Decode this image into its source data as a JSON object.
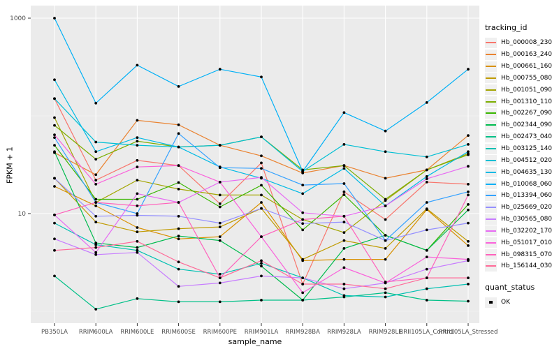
{
  "chart_data": {
    "type": "line",
    "title": "",
    "xlabel": "sample_name",
    "ylabel": "FPKM + 1",
    "legend_title": "tracking_id",
    "legend_position": "right",
    "y_scale": "log10",
    "grid": true,
    "panel_bg": "#EBEBEB",
    "grid_color": "#FFFFFF",
    "point_color": "#000000",
    "y_ticks": [
      {
        "value": 10,
        "label": "10"
      },
      {
        "value": 1000,
        "label": "1000"
      }
    ],
    "y_minor_gridlines": [
      1,
      100
    ],
    "ylim": [
      0.75,
      1100
    ],
    "categories": [
      "PB350LA",
      "RRIM600LA",
      "RRIM600LE",
      "RRIM600SE",
      "RRIM600PE",
      "RRIM901LA",
      "RRIM928BA",
      "RRIM928LA",
      "RRIM928LE",
      "RRII105LA_Control",
      "RRII105LA_Stressed"
    ],
    "series": [
      {
        "name": "Hb_000008_230",
        "color": "#F8766D",
        "values": [
          150,
          22,
          35,
          31,
          12.6,
          33,
          1.9,
          16.7,
          8.7,
          21,
          20
        ]
      },
      {
        "name": "Hb_000163_240",
        "color": "#EA8331",
        "values": [
          42,
          25,
          90,
          81,
          50,
          39,
          26,
          31,
          23,
          28,
          63
        ]
      },
      {
        "name": "Hb_000661_160",
        "color": "#D89000",
        "values": [
          19,
          12,
          7.2,
          5.5,
          5.8,
          13,
          3.3,
          3.4,
          3.4,
          11,
          4.7
        ]
      },
      {
        "name": "Hb_000755_080",
        "color": "#C09B00",
        "values": [
          23,
          8.2,
          6.5,
          7,
          7.3,
          11.3,
          3.4,
          5.3,
          4.4,
          11.2,
          5.2
        ]
      },
      {
        "name": "Hb_001051_090",
        "color": "#A3A500",
        "values": [
          96,
          13,
          22,
          17.8,
          15.5,
          15.5,
          8.7,
          6.4,
          13.6,
          28,
          41
        ]
      },
      {
        "name": "Hb_001310_110",
        "color": "#7CAE00",
        "values": [
          80,
          36,
          55,
          48,
          50,
          61,
          28,
          31,
          14,
          28,
          40
        ]
      },
      {
        "name": "Hb_002267_090",
        "color": "#39B600",
        "values": [
          50,
          14,
          14,
          20.8,
          11.7,
          19.5,
          6.8,
          15.6,
          6,
          4.2,
          12.4
        ]
      },
      {
        "name": "Hb_002344_090",
        "color": "#00BB4E",
        "values": [
          43,
          5,
          4.5,
          5.9,
          5.3,
          2.9,
          1.3,
          4.4,
          6,
          4.2,
          10.9
        ]
      },
      {
        "name": "Hb_002473_040",
        "color": "#00C087",
        "values": [
          2.3,
          1.05,
          1.35,
          1.25,
          1.25,
          1.3,
          1.3,
          1.4,
          1.55,
          1.3,
          1.27
        ]
      },
      {
        "name": "Hb_003125_140",
        "color": "#00C0B2",
        "values": [
          8,
          4.8,
          4.2,
          2.7,
          2.4,
          3.1,
          2.2,
          1.45,
          1.4,
          1.7,
          1.9
        ]
      },
      {
        "name": "Hb_004512_020",
        "color": "#00BFD4",
        "values": [
          150,
          54,
          50,
          48,
          50,
          61,
          27,
          51,
          43,
          38,
          51
        ]
      },
      {
        "name": "Hb_004635_130",
        "color": "#00BAE5",
        "values": [
          234,
          43,
          60,
          48,
          30,
          23,
          16,
          29,
          12,
          24,
          43
        ]
      },
      {
        "name": "Hb_010068_060",
        "color": "#00B0F6",
        "values": [
          1000,
          135,
          330,
          200,
          300,
          250,
          27,
          108,
          70,
          137,
          300
        ]
      },
      {
        "name": "Hb_013394_060",
        "color": "#35A2FF",
        "values": [
          60,
          13,
          10,
          66,
          29.5,
          29,
          19.6,
          20.3,
          5.3,
          13,
          16.7
        ]
      },
      {
        "name": "Hb_025669_020",
        "color": "#9590FF",
        "values": [
          23,
          9.4,
          9.6,
          9.4,
          8,
          11.3,
          7.9,
          8.2,
          5.3,
          6.8,
          8
        ]
      },
      {
        "name": "Hb_030565_080",
        "color": "#C77CFF",
        "values": [
          5.5,
          3.8,
          4,
          1.8,
          1.95,
          2.3,
          2.2,
          1.7,
          1.95,
          2.7,
          3.3
        ]
      },
      {
        "name": "Hb_032202_170",
        "color": "#E76BF3",
        "values": [
          9.7,
          4,
          16,
          13,
          21,
          23.5,
          10.2,
          9.4,
          12,
          22.7,
          30.5
        ]
      },
      {
        "name": "Hb_051017_010",
        "color": "#FA62DB",
        "values": [
          64,
          20,
          30,
          31,
          21,
          5.8,
          1.55,
          2.8,
          1.95,
          3.6,
          3.4
        ]
      },
      {
        "name": "Hb_098315_070",
        "color": "#FF62BC",
        "values": [
          9.7,
          13,
          12,
          13,
          2.2,
          5.8,
          8.7,
          9.4,
          2,
          2.2,
          15.5
        ]
      },
      {
        "name": "Hb_156144_030",
        "color": "#FF6A98",
        "values": [
          4.2,
          4.5,
          5.2,
          3.2,
          2.2,
          3.3,
          1.9,
          1.9,
          1.7,
          2.2,
          2.2
        ]
      }
    ],
    "quant_status": {
      "title": "quant_status",
      "items": [
        {
          "label": "OK",
          "marker": "black-square"
        }
      ]
    }
  }
}
